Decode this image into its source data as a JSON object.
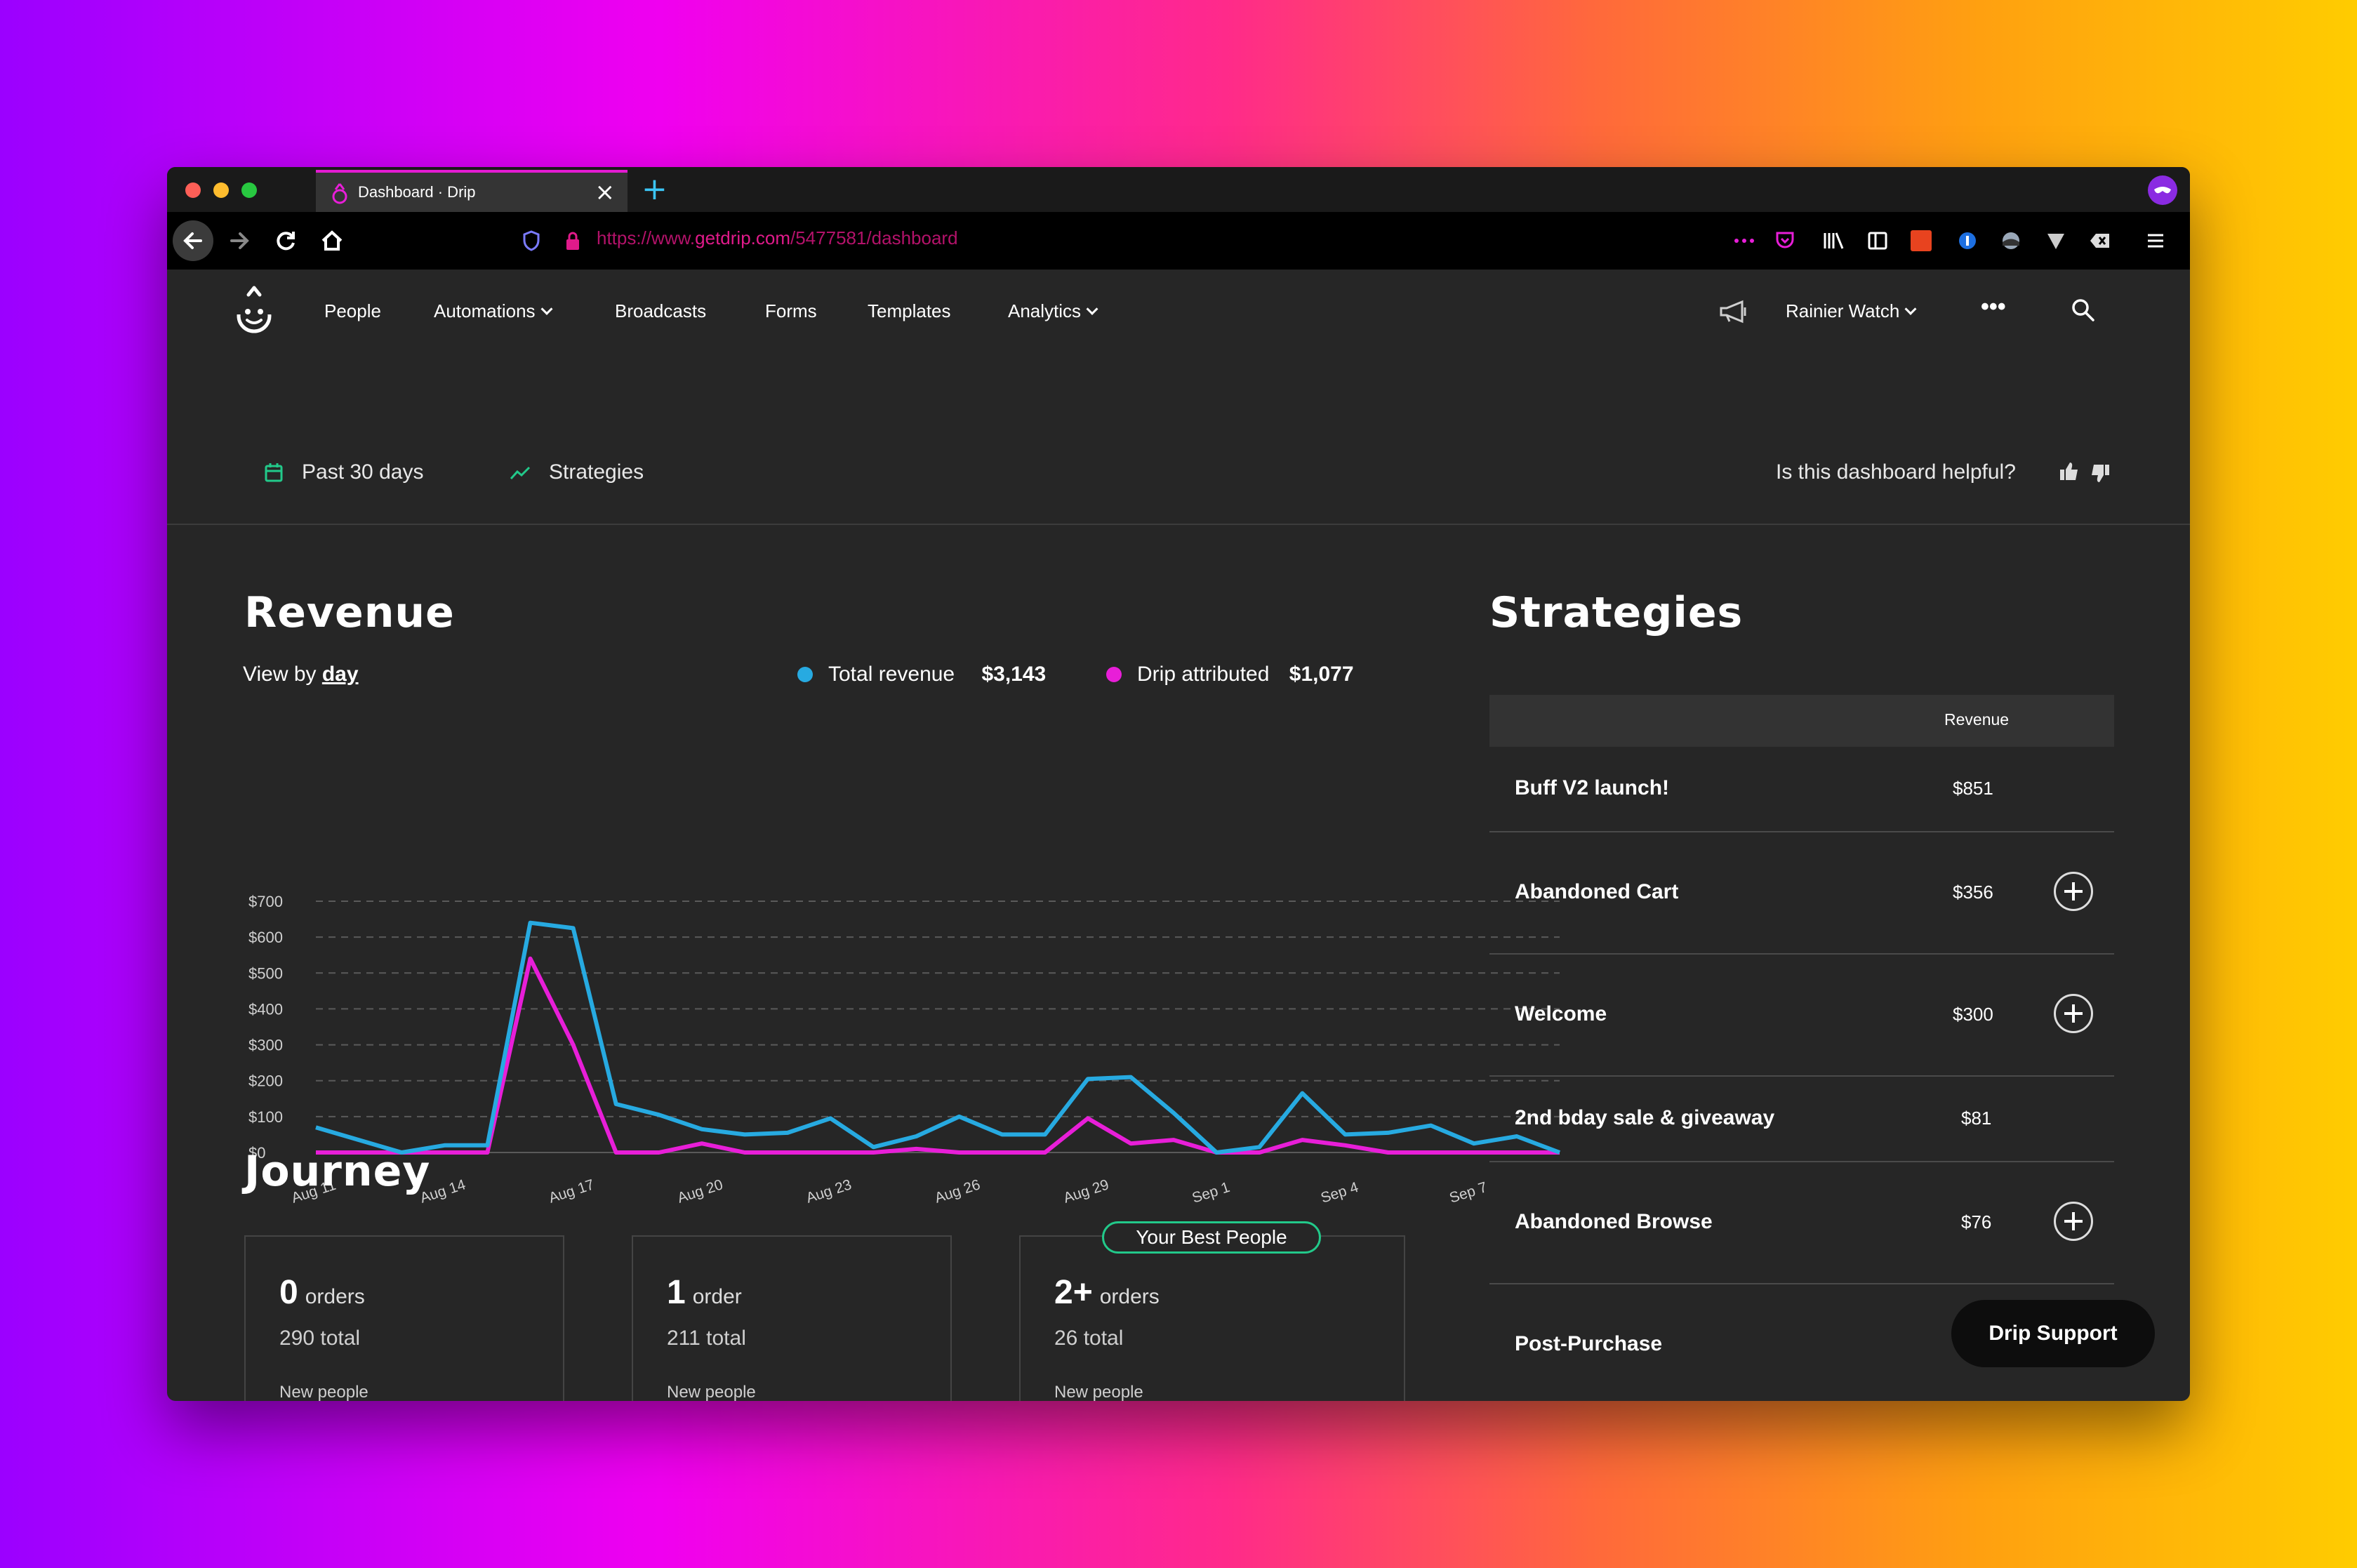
{
  "browser": {
    "tab_title": "Dashboard · Drip",
    "url_prefix": "https://www.",
    "url_domain": "getdrip.com",
    "url_path": "/5477581/dashboard"
  },
  "nav": {
    "items": [
      "People",
      "Automations",
      "Broadcasts",
      "Forms",
      "Templates",
      "Analytics"
    ],
    "account": "Rainier Watch",
    "more": "•••"
  },
  "filters": {
    "date_range": "Past 30 days",
    "strategies": "Strategies",
    "feedback": "Is this dashboard helpful?"
  },
  "revenue": {
    "title": "Revenue",
    "view_by_prefix": "View by",
    "view_by_value": "day",
    "total_label": "Total revenue",
    "total_value": "$3,143",
    "drip_label": "Drip attributed",
    "drip_value": "$1,077"
  },
  "chart_data": {
    "type": "line",
    "x": [
      "Aug 11",
      "Aug 12",
      "Aug 13",
      "Aug 14",
      "Aug 15",
      "Aug 16",
      "Aug 17",
      "Aug 18",
      "Aug 19",
      "Aug 20",
      "Aug 21",
      "Aug 22",
      "Aug 23",
      "Aug 24",
      "Aug 25",
      "Aug 26",
      "Aug 27",
      "Aug 28",
      "Aug 29",
      "Aug 30",
      "Aug 31",
      "Sep 1",
      "Sep 2",
      "Sep 3",
      "Sep 4",
      "Sep 5",
      "Sep 6",
      "Sep 7",
      "Sep 8",
      "Sep 9"
    ],
    "tick_labels": [
      "Aug 11",
      "Aug 14",
      "Aug 17",
      "Aug 20",
      "Aug 23",
      "Aug 26",
      "Aug 29",
      "Sep 1",
      "Sep 4",
      "Sep 7"
    ],
    "y_ticks": [
      "$0",
      "$100",
      "$200",
      "$300",
      "$400",
      "$500",
      "$600",
      "$700"
    ],
    "ylim": [
      0,
      700
    ],
    "grid": true,
    "series": [
      {
        "name": "Total revenue",
        "color": "#27aae1",
        "values": [
          70,
          35,
          0,
          20,
          20,
          640,
          625,
          135,
          105,
          65,
          50,
          55,
          95,
          15,
          45,
          100,
          50,
          50,
          205,
          210,
          110,
          0,
          15,
          165,
          50,
          55,
          75,
          25,
          45,
          0
        ]
      },
      {
        "name": "Drip attributed",
        "color": "#e81ed8",
        "values": [
          0,
          0,
          0,
          0,
          0,
          540,
          300,
          0,
          0,
          25,
          0,
          0,
          0,
          0,
          10,
          0,
          0,
          0,
          95,
          25,
          35,
          0,
          0,
          35,
          20,
          0,
          0,
          0,
          0,
          0
        ]
      }
    ]
  },
  "strategies": {
    "title": "Strategies",
    "col_revenue": "Revenue",
    "rows": [
      {
        "name": "Buff V2 launch!",
        "value": "$851"
      },
      {
        "name": "Abandoned Cart",
        "value": "$356"
      },
      {
        "name": "Welcome",
        "value": "$300"
      },
      {
        "name": "2nd bday sale & giveaway",
        "value": "$81"
      },
      {
        "name": "Abandoned Browse",
        "value": "$76"
      },
      {
        "name": "Post-Purchase",
        "value": ""
      }
    ]
  },
  "journey": {
    "title": "Journey",
    "badge": "Your Best People",
    "cards": [
      {
        "count": "0",
        "unit": "orders",
        "total": "290 total",
        "sub": "New people"
      },
      {
        "count": "1",
        "unit": "order",
        "total": "211 total",
        "sub": "New people"
      },
      {
        "count": "2+",
        "unit": "orders",
        "total": "26 total",
        "sub": "New people"
      }
    ]
  },
  "support_label": "Drip Support",
  "colors": {
    "accent_pink": "#e81ed8",
    "accent_blue": "#27aae1",
    "accent_green": "#22c98a",
    "bg_dark": "#262626"
  }
}
